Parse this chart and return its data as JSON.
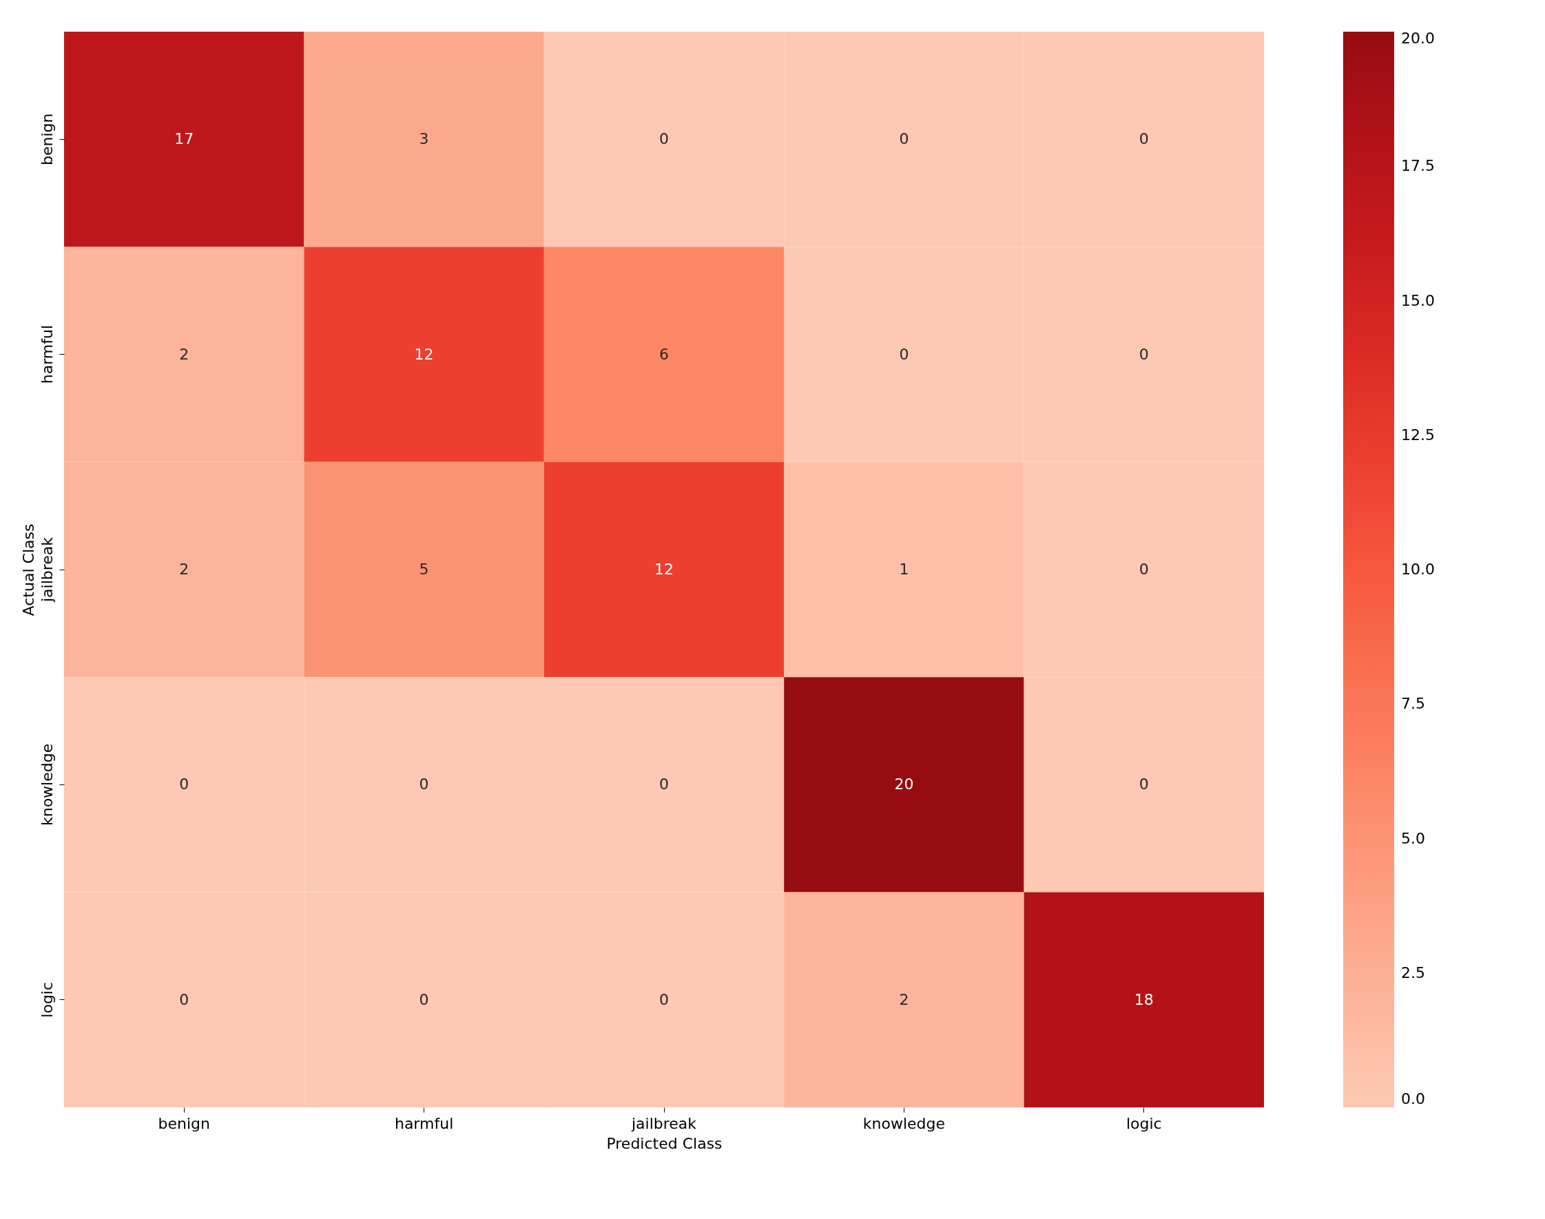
{
  "chart_data": {
    "type": "heatmap",
    "xlabel": "Predicted Class",
    "ylabel": "Actual Class",
    "categories": [
      "benign",
      "harmful",
      "jailbreak",
      "knowledge",
      "logic"
    ],
    "y_categories": [
      "benign",
      "harmful",
      "jailbreak",
      "knowledge",
      "logic"
    ],
    "cells": [
      [
        17,
        3,
        0,
        0,
        0
      ],
      [
        2,
        12,
        6,
        0,
        0
      ],
      [
        2,
        5,
        12,
        1,
        0
      ],
      [
        0,
        0,
        0,
        20,
        0
      ],
      [
        0,
        0,
        0,
        2,
        18
      ]
    ],
    "data_labels": true,
    "clim": [
      0,
      20
    ],
    "cticks": [
      {
        "value": 0,
        "label": "0.0"
      },
      {
        "value": 2.5,
        "label": "2.5"
      },
      {
        "value": 5,
        "label": "5.0"
      },
      {
        "value": 7.5,
        "label": "7.5"
      },
      {
        "value": 10,
        "label": "10.0"
      },
      {
        "value": 12.5,
        "label": "12.5"
      },
      {
        "value": 15,
        "label": "15.0"
      },
      {
        "value": 17.5,
        "label": "17.5"
      },
      {
        "value": 20,
        "label": "20.0"
      }
    ]
  }
}
